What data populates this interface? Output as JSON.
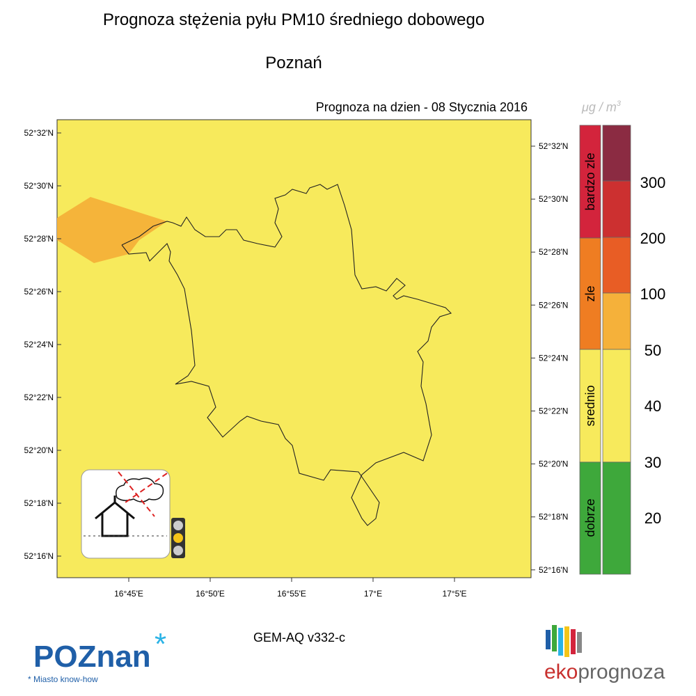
{
  "header": {
    "title": "Prognoza stężenia pyłu PM10 średniego dobowego",
    "subtitle": "Poznań",
    "date": "Prognoza na dzien -  08 Stycznia 2016"
  },
  "map": {
    "lat_left": [
      "52°32'N",
      "52°30'N",
      "52°28'N",
      "52°26'N",
      "52°24'N",
      "52°22'N",
      "52°20'N",
      "52°18'N",
      "52°16'N"
    ],
    "lat_right": [
      "52°32'N",
      "52°30'N",
      "52°28'N",
      "52°26'N",
      "52°24'N",
      "52°22'N",
      "52°20'N",
      "52°18'N",
      "52°16'N"
    ],
    "lon": [
      "16°45'E",
      "16°50'E",
      "16°55'E",
      "17°E",
      "17°5'E"
    ]
  },
  "legend": {
    "unit": {
      "base": "μg / m",
      "exp": "3"
    },
    "categories": [
      "bardzo zle",
      "zle",
      "srednio",
      "dobrze"
    ],
    "thresholds": [
      300,
      200,
      100,
      50,
      40,
      30,
      20
    ]
  },
  "footer": {
    "model": "GEM-AQ v332-c",
    "city_logo": "POZnan",
    "city_asterisk": "*",
    "city_slogan": "* Miasto know-how",
    "eko": "eko",
    "prognoza": "prognoza"
  }
}
